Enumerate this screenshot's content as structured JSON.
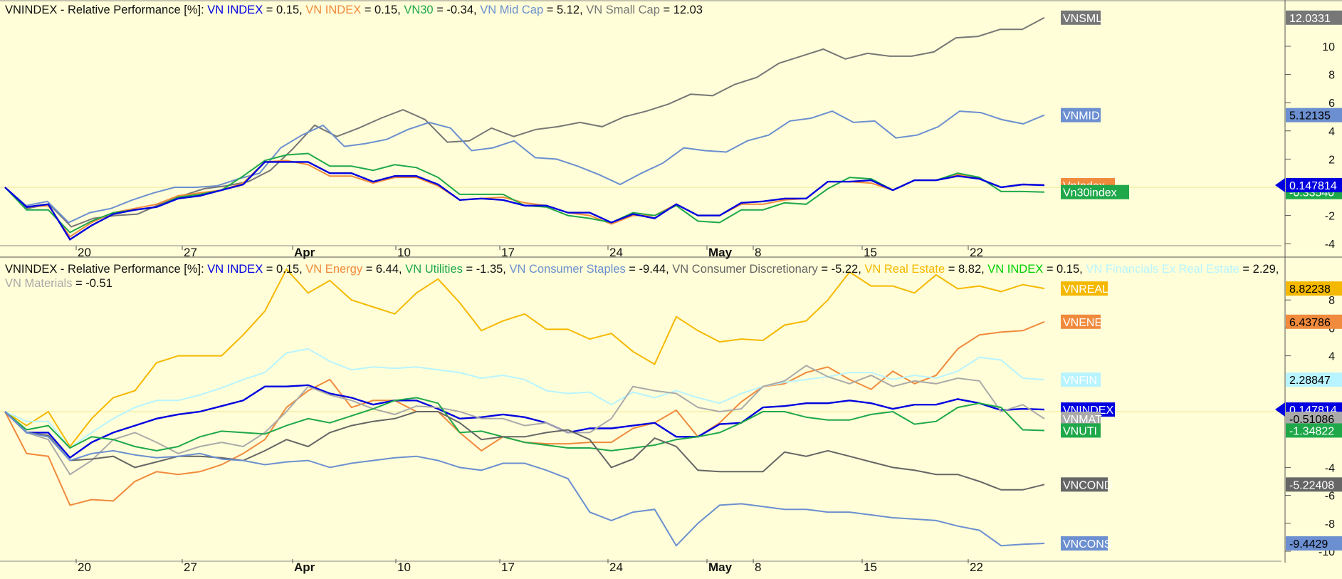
{
  "panels": [
    {
      "title_prefix": "VNINDEX - Relative Performance [%]:",
      "legend": [
        {
          "name": "VN INDEX",
          "value": "= 0.15,",
          "color": "#0000e0"
        },
        {
          "name": "VN INDEX",
          "value": "= 0.15,",
          "color": "#f08a3c"
        },
        {
          "name": "VN30",
          "value": "= -0.34,",
          "color": "#1fa84a"
        },
        {
          "name": "VN Mid Cap",
          "value": "= 5.12,",
          "color": "#6b8fd0"
        },
        {
          "name": "VN Small Cap",
          "value": "= 12.03",
          "color": "#777777"
        }
      ]
    },
    {
      "title_prefix": "VNINDEX - Relative Performance [%]:",
      "legend": [
        {
          "name": "VN INDEX",
          "value": "= 0.15,",
          "color": "#0000e0"
        },
        {
          "name": "VN Energy",
          "value": "= 6.44,",
          "color": "#f08a3c"
        },
        {
          "name": "VN Utilities",
          "value": "= -1.35,",
          "color": "#1fa84a"
        },
        {
          "name": "VN Consumer Staples",
          "value": "= -9.44,",
          "color": "#6b8fd0"
        },
        {
          "name": "VN Consumer Discretionary",
          "value": "= -5.22,",
          "color": "#666666"
        },
        {
          "name": "VN Real Estate",
          "value": "= 8.82,",
          "color": "#f5b800"
        },
        {
          "name": "VN INDEX",
          "value": "= 0.15,",
          "color": "#00d000"
        },
        {
          "name": "VN Financials Ex Real Estate",
          "value": "= 2.29,",
          "color": "#b8f4ff"
        },
        {
          "name": "VN Materials",
          "value": "= -0.51",
          "color": "#aaaaaa"
        }
      ]
    }
  ],
  "chart_data": [
    {
      "type": "line",
      "title": "VNINDEX - Relative Performance [%]",
      "x_tick_labels": [
        "20",
        "27",
        "Apr",
        "10",
        "17",
        "24",
        "May",
        "8",
        "15",
        "22"
      ],
      "y_ticks": [
        -4,
        -2,
        2,
        4,
        6,
        8,
        10
      ],
      "ylim": [
        -4.2,
        12.4
      ],
      "grid": false,
      "series": [
        {
          "name": "VN Small Cap",
          "tag": "VNSML",
          "last": "12.0331",
          "color": "#777777",
          "values": [
            0,
            -1.5,
            -1.2,
            -2.8,
            -2.2,
            -2,
            -1.9,
            -1.2,
            -0.6,
            -0.1,
            0.1,
            0.4,
            1.2,
            2.7,
            4.4,
            3.6,
            4.2,
            4.9,
            5.5,
            4.8,
            3.2,
            3.3,
            4.2,
            3.6,
            4.1,
            4.3,
            4.6,
            4.3,
            5,
            5.4,
            5.9,
            6.6,
            6.5,
            7.3,
            7.8,
            8.8,
            9.3,
            9.8,
            9.1,
            9.5,
            9.3,
            9.3,
            9.6,
            10.6,
            10.7,
            11.2,
            11.2,
            12.03
          ]
        },
        {
          "name": "VN Mid Cap",
          "tag": "VNMID",
          "last": "5.12135",
          "color": "#6b8fd0",
          "values": [
            0,
            -1.3,
            -1,
            -2.5,
            -1.8,
            -1.5,
            -0.9,
            -0.4,
            0,
            0,
            0.1,
            0.6,
            1,
            2.8,
            3.7,
            4.4,
            2.9,
            3.1,
            3.4,
            4.1,
            4.6,
            4.2,
            2.6,
            2.8,
            3.3,
            2.1,
            2,
            1.5,
            0.9,
            0.2,
            1,
            1.7,
            2.8,
            2.6,
            2.5,
            3.3,
            3.7,
            4.7,
            4.9,
            5.4,
            4.6,
            4.7,
            3.5,
            3.7,
            4.3,
            5.4,
            5.3,
            4.8,
            4.5,
            5.12
          ]
        },
        {
          "name": "VN INDEX",
          "tag": "VnIndex",
          "last": "0.147814",
          "color": "#f08a3c",
          "values": [
            0,
            -1.4,
            -1.3,
            -3.5,
            -2.5,
            -1.8,
            -1.5,
            -1.2,
            -0.6,
            -0.4,
            -0.2,
            0.3,
            1.8,
            1.9,
            1.6,
            0.8,
            0.8,
            0.3,
            0.7,
            0.7,
            0.1,
            -0.9,
            -0.8,
            -0.7,
            -1.1,
            -1.3,
            -1.8,
            -2,
            -2.6,
            -2,
            -2,
            -1.2,
            -2,
            -2,
            -1.2,
            -1.2,
            -0.9,
            -0.8,
            0.4,
            0.4,
            0.3,
            -0.2,
            0.5,
            0.5,
            0.9,
            0.6,
            0,
            0.2,
            0.15
          ]
        },
        {
          "name": "VN30",
          "tag": "Vn30index",
          "last": "-0.33540",
          "color": "#1fa84a",
          "values": [
            0,
            -1.6,
            -1.6,
            -3.2,
            -2.4,
            -1.8,
            -1.6,
            -1.4,
            -0.7,
            -0.5,
            -0.2,
            0.8,
            1.9,
            2.3,
            2.4,
            1.5,
            1.5,
            1.2,
            1.6,
            1.4,
            0.7,
            -0.5,
            -0.5,
            -0.5,
            -1.3,
            -1.4,
            -2,
            -2.2,
            -2.5,
            -1.8,
            -2,
            -1.3,
            -2.4,
            -2.5,
            -1.6,
            -1.6,
            -1.1,
            -1.2,
            -0.1,
            0.7,
            0.6,
            -0.2,
            0.5,
            0.5,
            1,
            0.7,
            -0.3,
            -0.3,
            -0.34
          ]
        },
        {
          "name": "VN INDEX",
          "tag": "",
          "last": "0.147814",
          "color": "#0000e0",
          "values": [
            0,
            -1.4,
            -1.2,
            -3.7,
            -2.7,
            -1.9,
            -1.6,
            -1.4,
            -0.8,
            -0.6,
            -0.2,
            0.2,
            1.8,
            1.8,
            1.8,
            1,
            1,
            0.4,
            0.8,
            0.8,
            0.2,
            -0.9,
            -0.8,
            -0.9,
            -1.3,
            -1.3,
            -1.8,
            -1.8,
            -2.5,
            -1.9,
            -2.2,
            -1.2,
            -2,
            -2,
            -1.1,
            -1,
            -0.8,
            -0.8,
            0.4,
            0.4,
            0.5,
            -0.2,
            0.5,
            0.5,
            0.8,
            0.6,
            0,
            0.2,
            0.15
          ]
        }
      ]
    },
    {
      "type": "line",
      "title": "VNINDEX - Relative Performance [%]",
      "x_tick_labels": [
        "20",
        "27",
        "Apr",
        "10",
        "17",
        "24",
        "May",
        "8",
        "15",
        "22"
      ],
      "y_ticks": [
        -10,
        -8,
        -6,
        -4,
        4,
        6,
        8
      ],
      "ylim": [
        -10.3,
        10.5
      ],
      "grid": false,
      "series": [
        {
          "name": "VN Real Estate",
          "tag": "VNREAL",
          "last": "8.82238",
          "color": "#f5b800",
          "values": [
            0,
            -1,
            0,
            -2.5,
            -0.5,
            1,
            1.5,
            3.5,
            4,
            4,
            4,
            5.5,
            7.2,
            10.2,
            8.5,
            9.4,
            8,
            7.5,
            7,
            8.5,
            9.5,
            7.8,
            5.8,
            6.5,
            7,
            5.9,
            5.9,
            5.2,
            5.6,
            4.3,
            3.4,
            6.8,
            5.8,
            5,
            5.2,
            5.1,
            6.2,
            6.5,
            8,
            10,
            9,
            9,
            8.5,
            9.8,
            8.8,
            9,
            8.6,
            9.1,
            8.82
          ]
        },
        {
          "name": "VN Energy",
          "tag": "VNENE",
          "last": "6.43786",
          "color": "#f08a3c",
          "values": [
            0,
            -3,
            -3.2,
            -6.7,
            -6.3,
            -6.4,
            -5,
            -4.3,
            -4.5,
            -4.3,
            -3.8,
            -3,
            -2,
            0.3,
            1.5,
            2.3,
            0.3,
            0.8,
            0.8,
            0,
            0,
            -1.5,
            -2.8,
            -1.8,
            -2.2,
            -2.3,
            -2.3,
            -2.2,
            -2.2,
            -1.2,
            -0.8,
            0.1,
            -1.8,
            -0.8,
            0.7,
            1.8,
            2,
            2.8,
            3.2,
            2.3,
            1.6,
            2.9,
            2,
            2.6,
            4.5,
            5.5,
            5.7,
            5.8,
            6.44
          ]
        },
        {
          "name": "VN Financials Ex Real Estate",
          "tag": "VNFIN",
          "last": "2.28847",
          "color": "#b8f4ff",
          "values": [
            0,
            -0.7,
            -0.7,
            -2.6,
            -1.5,
            -0.5,
            0.3,
            0.8,
            0.8,
            1.2,
            1.7,
            2.3,
            2.8,
            4.2,
            4.5,
            3.6,
            3,
            3.2,
            3.1,
            3.2,
            3,
            2.8,
            2.4,
            2.6,
            2.3,
            1.5,
            1.3,
            1.4,
            0.5,
            1.4,
            1,
            1.5,
            1,
            0.6,
            1.3,
            1.8,
            2.1,
            2.3,
            2.5,
            2.8,
            2.8,
            2.3,
            2.6,
            2.4,
            2.9,
            3.9,
            3.7,
            2.4,
            2.29
          ]
        },
        {
          "name": "VN INDEX",
          "tag": "VNINDEX",
          "last": "0.147814",
          "color": "#0000e0",
          "values": [
            0,
            -1.5,
            -1.5,
            -3.3,
            -2.2,
            -1.5,
            -1,
            -0.5,
            -0.2,
            0,
            0.4,
            0.8,
            1.8,
            1.8,
            1.9,
            1.3,
            1,
            0.5,
            0.8,
            0.8,
            0.2,
            -0.5,
            -0.4,
            -0.2,
            -0.4,
            -0.8,
            -1.5,
            -1.2,
            -1.2,
            -1,
            -0.8,
            -1.8,
            -1.8,
            -0.9,
            -0.8,
            0.3,
            0.4,
            0.6,
            0.6,
            0.8,
            0.6,
            0.2,
            0.5,
            0.5,
            0.9,
            0.6,
            0.1,
            0.2,
            0.15
          ]
        },
        {
          "name": "VN Materials",
          "tag": "VNMAT",
          "last": "-0.51086",
          "color": "#aaaaaa",
          "values": [
            0,
            -1.5,
            -2,
            -4.5,
            -3.5,
            -2,
            -1.5,
            -2.2,
            -3,
            -2.5,
            -2.2,
            -2.5,
            -1.5,
            0,
            1.8,
            1.2,
            0.8,
            0.2,
            -0.2,
            0.4,
            0.3,
            0,
            -0.5,
            -0.5,
            -1,
            -0.8,
            -1.5,
            -1.5,
            -0.5,
            1.8,
            1.5,
            1.3,
            0.3,
            0,
            0.2,
            1.8,
            2.2,
            3.3,
            2.5,
            2,
            2.6,
            1.8,
            2.2,
            2,
            2.4,
            2.2,
            0,
            0.5,
            -0.51
          ]
        },
        {
          "name": "VN Utilities",
          "tag": "VNUTI",
          "last": "-1.34822",
          "color": "#1fa84a",
          "values": [
            0,
            -1.3,
            -1,
            -2.6,
            -1.8,
            -2,
            -2.5,
            -2.8,
            -2.5,
            -1.8,
            -1.4,
            -1.5,
            -1.6,
            -1,
            -0.5,
            -0.8,
            -0.3,
            0.2,
            0.8,
            1,
            0.6,
            -1.5,
            -1.4,
            -1.8,
            -2.2,
            -2.4,
            -2.6,
            -2.6,
            -2.8,
            -2.6,
            -2.4,
            -2,
            -1.8,
            -1.5,
            -0.8,
            0,
            0,
            -0.4,
            -0.6,
            -0.6,
            -0.2,
            0,
            -0.9,
            -0.7,
            0.3,
            0.6,
            0.3,
            -1.3,
            -1.35
          ]
        },
        {
          "name": "VN Consumer Discretionary",
          "tag": "VNCOND",
          "last": "-5.22408",
          "color": "#666666",
          "values": [
            0,
            -1.5,
            -1.7,
            -3.5,
            -3.4,
            -3.2,
            -4,
            -3.6,
            -3.2,
            -3.2,
            -3.3,
            -3.5,
            -2.8,
            -2,
            -2.5,
            -1.5,
            -1,
            -0.7,
            -0.5,
            0,
            0,
            -0.8,
            -2,
            -1.8,
            -1.8,
            -1.5,
            -1.3,
            -2,
            -4,
            -3.4,
            -1.9,
            -2.5,
            -4.2,
            -4.3,
            -4.3,
            -4.3,
            -2.9,
            -3.2,
            -2.8,
            -3.2,
            -3.6,
            -4,
            -4.2,
            -4.5,
            -4.5,
            -5,
            -5.6,
            -5.6,
            -5.22
          ]
        },
        {
          "name": "VN Consumer Staples",
          "tag": "VNCONS",
          "last": "-9.4429",
          "color": "#6b8fd0",
          "values": [
            0,
            -1.5,
            -1.8,
            -3.5,
            -3,
            -2.8,
            -3.1,
            -3.3,
            -3.2,
            -3,
            -3.4,
            -3.5,
            -3.8,
            -3.6,
            -3.5,
            -4,
            -3.7,
            -3.5,
            -3.3,
            -3.2,
            -3.5,
            -4,
            -4.2,
            -3.7,
            -3.7,
            -4.2,
            -4.8,
            -7.2,
            -7.8,
            -7.2,
            -7,
            -9.6,
            -8,
            -6.7,
            -6.6,
            -6.8,
            -7,
            -7,
            -7.2,
            -7.2,
            -7.4,
            -7.6,
            -7.7,
            -7.8,
            -8.2,
            -8.5,
            -9.6,
            -9.5,
            -9.44
          ]
        }
      ]
    }
  ]
}
